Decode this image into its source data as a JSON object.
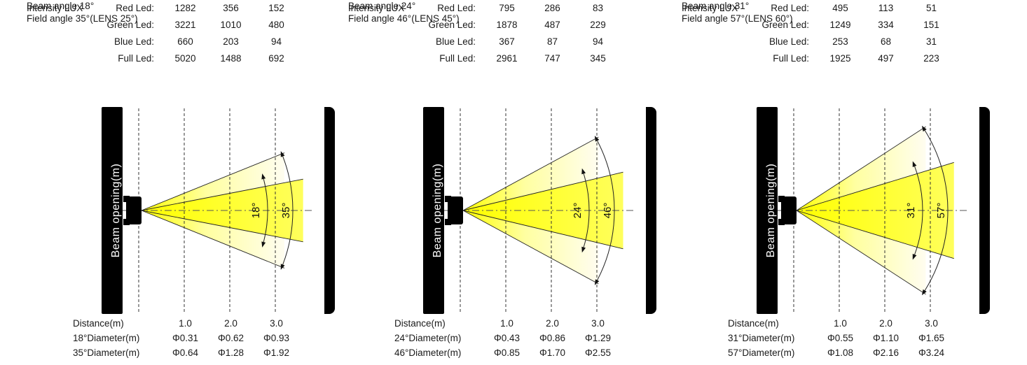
{
  "colors": {
    "beam_core": "#ffff00",
    "beam_mid": "#ffffa0",
    "beam_fade": "#fffdf0",
    "wall": "#000000",
    "line": "#222222",
    "centerline": "#555555",
    "text": "#1a1a1a",
    "wall_text": "#ffffff"
  },
  "panels": [
    {
      "beam_angle_label": "Beam angle 18°",
      "field_angle_label": "Field angle 35°(LENS 25°)",
      "intensity_prefix": "Intensity LUX",
      "intensity_rows": [
        {
          "label": "Red Led:",
          "values": [
            "1282",
            "356",
            "152"
          ]
        },
        {
          "label": "Green Led:",
          "values": [
            "3221",
            "1010",
            "480"
          ]
        },
        {
          "label": "Blue Led:",
          "values": [
            "660",
            "203",
            "94"
          ]
        },
        {
          "label": "Full Led:",
          "values": [
            "5020",
            "1488",
            "692"
          ]
        }
      ],
      "axis_label": "Beam opening(m)",
      "beam_angle_value": 18,
      "field_angle_value": 35,
      "beam_arc_label": "18°",
      "field_arc_label": "35°",
      "distance_rows": [
        {
          "label": "Distance(m)",
          "values": [
            "1.0",
            "2.0",
            "3.0"
          ]
        },
        {
          "label": "18°Diameter(m)",
          "values": [
            "Φ0.31",
            "Φ0.62",
            "Φ0.93"
          ]
        },
        {
          "label": "35°Diameter(m)",
          "values": [
            "Φ0.64",
            "Φ1.28",
            "Φ1.92"
          ]
        }
      ]
    },
    {
      "beam_angle_label": "Beam angle 24°",
      "field_angle_label": "Field angle 46°(LENS 45°)",
      "intensity_prefix": "Intensity LUX",
      "intensity_rows": [
        {
          "label": "Red Led:",
          "values": [
            "795",
            "286",
            "83"
          ]
        },
        {
          "label": "Green Led:",
          "values": [
            "1878",
            "487",
            "229"
          ]
        },
        {
          "label": "Blue Led:",
          "values": [
            "367",
            "87",
            "94"
          ]
        },
        {
          "label": "Full Led:",
          "values": [
            "2961",
            "747",
            "345"
          ]
        }
      ],
      "axis_label": "Beam opening(m)",
      "beam_angle_value": 24,
      "field_angle_value": 46,
      "beam_arc_label": "24°",
      "field_arc_label": "46°",
      "distance_rows": [
        {
          "label": "Distance(m)",
          "values": [
            "1.0",
            "2.0",
            "3.0"
          ]
        },
        {
          "label": "24°Diameter(m)",
          "values": [
            "Φ0.43",
            "Φ0.86",
            "Φ1.29"
          ]
        },
        {
          "label": "46°Diameter(m)",
          "values": [
            "Φ0.85",
            "Φ1.70",
            "Φ2.55"
          ]
        }
      ]
    },
    {
      "beam_angle_label": "Beam angle 31°",
      "field_angle_label": "Field angle 57°(LENS 60°)",
      "intensity_prefix": "Intensity LUX",
      "intensity_rows": [
        {
          "label": "Red Led:",
          "values": [
            "495",
            "113",
            "51"
          ]
        },
        {
          "label": "Green Led:",
          "values": [
            "1249",
            "334",
            "151"
          ]
        },
        {
          "label": "Blue Led:",
          "values": [
            "253",
            "68",
            "31"
          ]
        },
        {
          "label": "Full Led:",
          "values": [
            "1925",
            "497",
            "223"
          ]
        }
      ],
      "axis_label": "Beam opening(m)",
      "beam_angle_value": 31,
      "field_angle_value": 57,
      "beam_arc_label": "31°",
      "field_arc_label": "57°",
      "distance_rows": [
        {
          "label": "Distance(m)",
          "values": [
            "1.0",
            "2.0",
            "3.0"
          ]
        },
        {
          "label": "31°Diameter(m)",
          "values": [
            "Φ0.55",
            "Φ1.10",
            "Φ1.65"
          ]
        },
        {
          "label": "57°Diameter(m)",
          "values": [
            "Φ1.08",
            "Φ2.16",
            "Φ3.24"
          ]
        }
      ]
    }
  ]
}
